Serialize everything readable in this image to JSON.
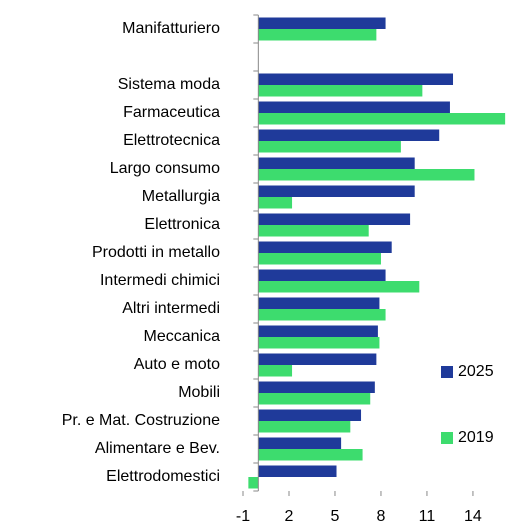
{
  "chart_data": {
    "type": "barh",
    "categories": [
      "Manifatturiero",
      null,
      "Sistema moda",
      "Farmaceutica",
      "Elettrotecnica",
      "Largo consumo",
      "Metallurgia",
      "Elettronica",
      "Prodotti in metallo",
      "Intermedi chimici",
      "Altri intermedi",
      "Meccanica",
      "Auto e moto",
      "Mobili",
      "Pr. e Mat. Costruzione",
      "Alimentare e Bev.",
      "Elettrodomestici"
    ],
    "series": [
      {
        "name": "2025",
        "color": "#1f3a9a",
        "values": [
          8.3,
          null,
          12.7,
          12.5,
          11.8,
          10.2,
          10.2,
          9.9,
          8.7,
          8.3,
          7.9,
          7.8,
          7.7,
          7.6,
          6.7,
          5.4,
          5.1
        ]
      },
      {
        "name": "2019",
        "color": "#3ddc6e",
        "values": [
          7.7,
          null,
          10.7,
          16.1,
          9.3,
          14.1,
          2.2,
          7.2,
          8.0,
          10.5,
          8.3,
          7.9,
          2.2,
          7.3,
          6.0,
          6.8,
          -0.65
        ]
      }
    ],
    "xlim": [
      -1,
      16
    ],
    "xticks": [
      -1,
      2,
      5,
      8,
      11,
      14
    ]
  }
}
